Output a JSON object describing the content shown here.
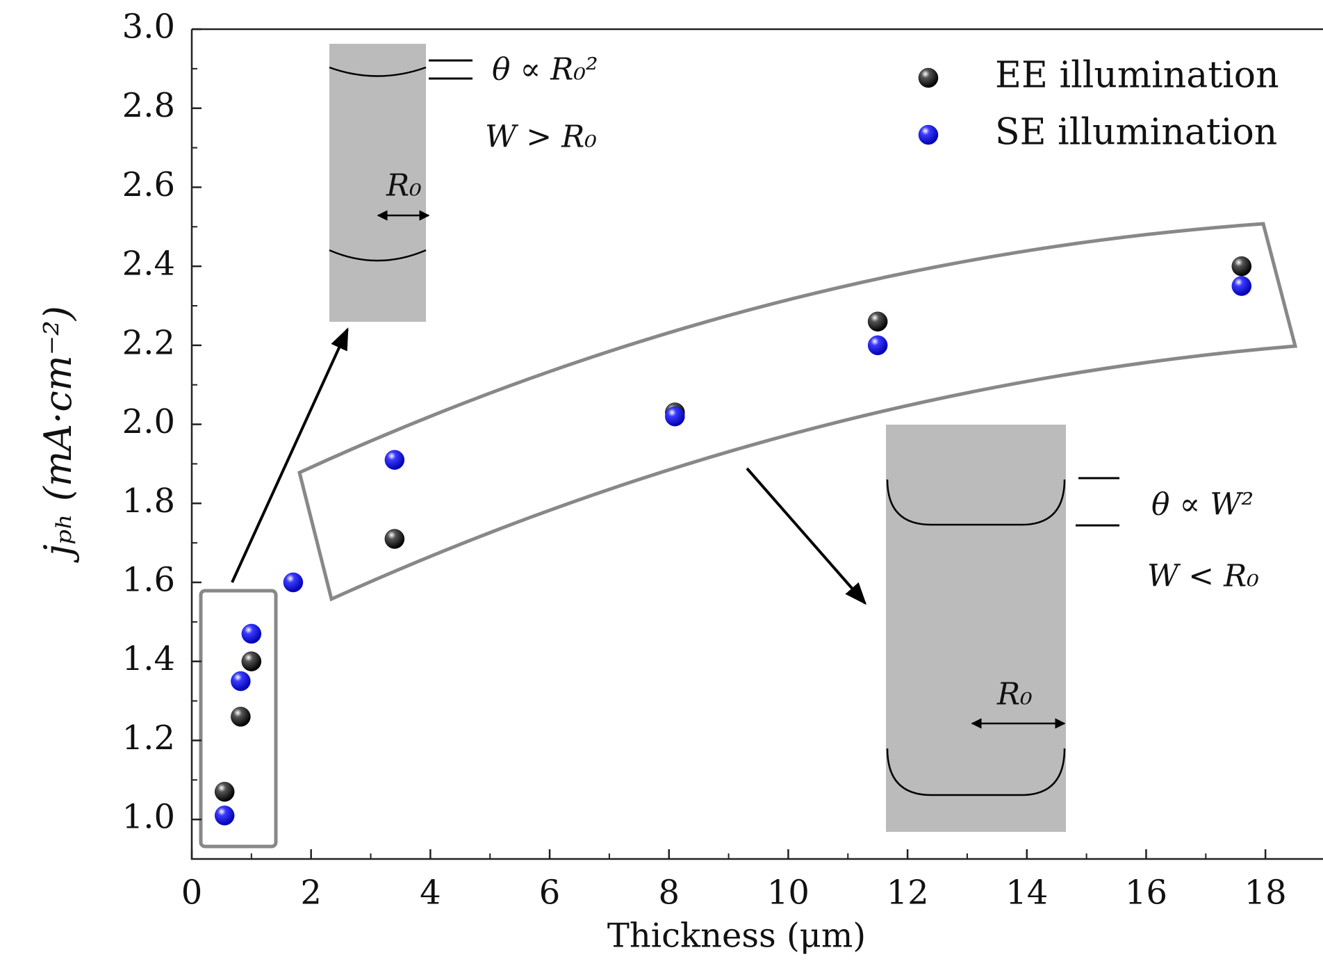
{
  "chart_data": {
    "type": "scatter",
    "x_label": "Thickness (μm)",
    "y_label": "jₚₕ (mA·cm⁻²)",
    "xlim": [
      0,
      19
    ],
    "ylim": [
      0.9,
      3.0
    ],
    "xticks": [
      0,
      2,
      4,
      6,
      8,
      10,
      12,
      14,
      16,
      18
    ],
    "xminorticks": [
      1,
      3,
      5,
      7,
      9,
      11,
      13,
      15,
      17
    ],
    "yticks": [
      {
        "value": 1.0,
        "label": "1.0"
      },
      1.2,
      1.4,
      1.6,
      1.8,
      {
        "value": 2.0,
        "label": "2.0"
      },
      2.2,
      2.4,
      2.6,
      2.8,
      {
        "value": 3.0,
        "label": "3.0"
      }
    ],
    "yminorticks": [
      1.1,
      1.3,
      1.5,
      1.7,
      1.9,
      2.1,
      2.3,
      2.5,
      2.7,
      2.9
    ],
    "legend_position": "upper right",
    "series": [
      {
        "name": "EE illumination",
        "color": "#000000",
        "x": [
          0.55,
          0.82,
          1.0,
          3.4,
          8.1,
          11.5,
          17.6
        ],
        "values": [
          1.07,
          1.26,
          1.4,
          1.71,
          2.03,
          2.26,
          2.4
        ]
      },
      {
        "name": "SE illumination",
        "color": "#1010e0",
        "x": [
          0.55,
          0.82,
          1.0,
          1.7,
          3.4,
          8.1,
          11.5,
          17.6
        ],
        "values": [
          1.01,
          1.35,
          1.47,
          1.6,
          1.91,
          2.02,
          2.2,
          2.35
        ]
      }
    ],
    "annotations": [
      "θ ∝ R₀²",
      "W > R₀",
      "R₀",
      "θ ∝ W²",
      "W < R₀",
      "R₀"
    ]
  }
}
